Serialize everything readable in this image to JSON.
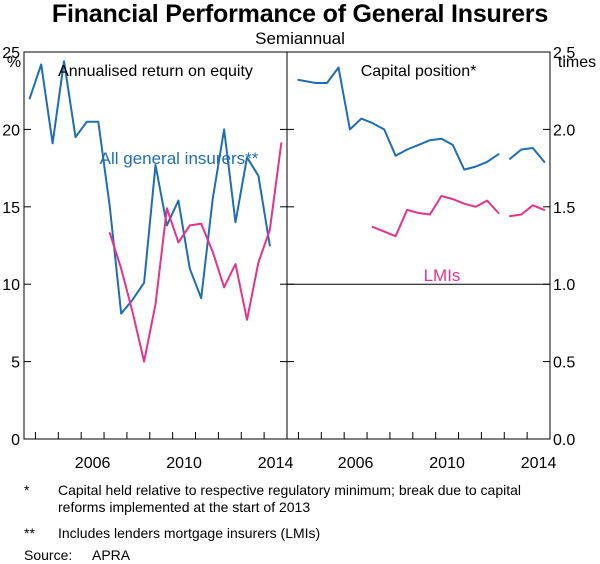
{
  "title": "Financial Performance of General Insurers",
  "subtitle": "Semiannual",
  "chart_data": {
    "type": "line",
    "panels": [
      {
        "title": "Annualised return on equity",
        "unit": "%",
        "ylim": [
          0,
          25
        ],
        "yticks": [
          0,
          5,
          10,
          15,
          20,
          25
        ],
        "xlim": [
          2003.5,
          2015.0
        ],
        "xticks": [
          2006,
          2010,
          2014
        ],
        "series": [
          {
            "name": "All general insurers**",
            "color": "#1f6db3",
            "segments": [
              [
                [
                  2003.75,
                  22.0
                ],
                [
                  2004.25,
                  24.2
                ],
                [
                  2004.75,
                  19.1
                ],
                [
                  2005.25,
                  24.4
                ],
                [
                  2005.75,
                  19.5
                ],
                [
                  2006.25,
                  20.5
                ],
                [
                  2006.75,
                  20.5
                ],
                [
                  2007.25,
                  15.0
                ],
                [
                  2007.75,
                  8.1
                ],
                [
                  2008.25,
                  9.0
                ],
                [
                  2008.75,
                  10.1
                ],
                [
                  2009.25,
                  17.7
                ],
                [
                  2009.75,
                  13.8
                ],
                [
                  2010.25,
                  15.4
                ],
                [
                  2010.75,
                  11.0
                ],
                [
                  2011.25,
                  9.1
                ],
                [
                  2011.75,
                  15.5
                ],
                [
                  2012.25,
                  20.0
                ],
                [
                  2012.75,
                  14.0
                ],
                [
                  2013.25,
                  18.2
                ],
                [
                  2013.75,
                  17.0
                ],
                [
                  2014.25,
                  12.5
                ]
              ]
            ]
          },
          {
            "name": "LMIs",
            "color": "#e5338a",
            "segments": [
              [
                [
                  2007.25,
                  13.3
                ],
                [
                  2007.75,
                  11.0
                ],
                [
                  2008.25,
                  8.2
                ],
                [
                  2008.75,
                  5.0
                ],
                [
                  2009.25,
                  8.7
                ],
                [
                  2009.75,
                  14.9
                ],
                [
                  2010.25,
                  12.7
                ],
                [
                  2010.75,
                  13.8
                ],
                [
                  2011.25,
                  13.9
                ],
                [
                  2011.75,
                  12.1
                ],
                [
                  2012.25,
                  9.8
                ],
                [
                  2012.75,
                  11.3
                ],
                [
                  2013.25,
                  7.7
                ],
                [
                  2013.75,
                  11.4
                ],
                [
                  2014.25,
                  13.5
                ],
                [
                  2014.75,
                  19.1
                ]
              ]
            ]
          }
        ]
      },
      {
        "title": "Capital position*",
        "unit": "times",
        "ylim": [
          0.0,
          2.5
        ],
        "yticks": [
          0.0,
          0.5,
          1.0,
          1.5,
          2.0,
          2.5
        ],
        "xlim": [
          2003.5,
          2015.0
        ],
        "xticks": [
          2006,
          2010,
          2014
        ],
        "reference_line": 1.0,
        "series": [
          {
            "name": "All general insurers**",
            "color": "#1f6db3",
            "segments": [
              [
                [
                  2004.0,
                  2.32
                ],
                [
                  2004.75,
                  2.3
                ],
                [
                  2005.25,
                  2.3
                ],
                [
                  2005.75,
                  2.4
                ],
                [
                  2006.25,
                  2.0
                ],
                [
                  2006.75,
                  2.07
                ],
                [
                  2007.25,
                  2.04
                ],
                [
                  2007.75,
                  2.0
                ],
                [
                  2008.25,
                  1.83
                ],
                [
                  2008.75,
                  1.87
                ],
                [
                  2009.25,
                  1.9
                ],
                [
                  2009.75,
                  1.93
                ],
                [
                  2010.25,
                  1.94
                ],
                [
                  2010.75,
                  1.9
                ],
                [
                  2011.25,
                  1.74
                ],
                [
                  2011.75,
                  1.76
                ],
                [
                  2012.25,
                  1.79
                ],
                [
                  2012.75,
                  1.84
                ]
              ],
              [
                [
                  2013.25,
                  1.81
                ],
                [
                  2013.75,
                  1.87
                ],
                [
                  2014.25,
                  1.88
                ],
                [
                  2014.75,
                  1.79
                ]
              ]
            ]
          },
          {
            "name": "LMIs",
            "color": "#e5338a",
            "segments": [
              [
                [
                  2007.25,
                  1.37
                ],
                [
                  2007.75,
                  1.34
                ],
                [
                  2008.25,
                  1.31
                ],
                [
                  2008.75,
                  1.48
                ],
                [
                  2009.25,
                  1.46
                ],
                [
                  2009.75,
                  1.45
                ],
                [
                  2010.25,
                  1.57
                ],
                [
                  2010.75,
                  1.55
                ],
                [
                  2011.25,
                  1.52
                ],
                [
                  2011.75,
                  1.5
                ],
                [
                  2012.25,
                  1.54
                ],
                [
                  2012.75,
                  1.46
                ]
              ],
              [
                [
                  2013.25,
                  1.44
                ],
                [
                  2013.75,
                  1.45
                ],
                [
                  2014.25,
                  1.51
                ],
                [
                  2014.75,
                  1.48
                ]
              ]
            ]
          }
        ]
      }
    ],
    "annotations": [
      {
        "text": "All general insurers**",
        "color": "#1f6db3"
      },
      {
        "text": "LMIs",
        "color": "#e5338a"
      }
    ]
  },
  "footnotes": {
    "f1_mark": "*",
    "f1_text": "Capital held relative to respective regulatory minimum; break due to capital reforms implemented at the start of 2013",
    "f2_mark": "**",
    "f2_text": "Includes lenders mortgage insurers (LMIs)",
    "source_label": "Source:",
    "source_value": "APRA"
  }
}
